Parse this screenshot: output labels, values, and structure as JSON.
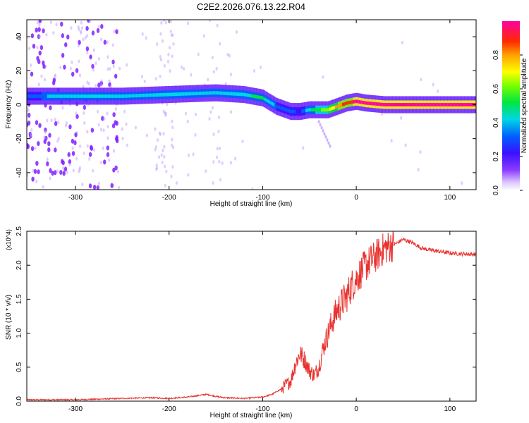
{
  "figure_title": "C2E2.2026.076.13.22.R04",
  "chart_data": [
    {
      "type": "heatmap",
      "title": "C2E2.2026.076.13.22.R04",
      "xlabel": "Height of straight line (km)",
      "ylabel": "Frequency (Hz)",
      "xlim": [
        -352,
        128
      ],
      "ylim": [
        -50,
        50
      ],
      "xticks": [
        -300,
        -200,
        -100,
        0,
        100
      ],
      "yticks": [
        -40,
        -20,
        0,
        20,
        40
      ],
      "colorbar": {
        "label": "Normalized spectral amplitude",
        "range": [
          0.0,
          1.0
        ],
        "ticks": [
          0.0,
          0.2,
          0.4,
          0.6,
          0.8
        ],
        "tick_labels": [
          "0.0",
          "0.2",
          "0.4",
          "0.6",
          "0.8"
        ],
        "colormap": "rainbow (white to purple to blue to cyan to green to yellow to orange to red to magenta)"
      },
      "ridge": {
        "description": "Main spectral ridge (frequency vs height)",
        "x": [
          -350,
          -300,
          -250,
          -200,
          -150,
          -120,
          -100,
          -85,
          -70,
          -60,
          -50,
          -40,
          -30,
          -20,
          -10,
          0,
          10,
          30,
          60,
          100,
          128
        ],
        "y": [
          5,
          5,
          5,
          6,
          7,
          6,
          4,
          -1,
          -4,
          -4,
          -3,
          -3,
          -3,
          -1,
          1,
          2,
          1,
          0,
          0,
          0,
          0
        ],
        "amplitude": [
          0.3,
          0.35,
          0.4,
          0.42,
          0.42,
          0.4,
          0.45,
          0.3,
          0.25,
          0.2,
          0.4,
          0.5,
          0.6,
          0.75,
          0.85,
          0.9,
          0.95,
          0.98,
          0.98,
          0.95,
          0.9
        ]
      }
    },
    {
      "type": "line",
      "xlabel": "Height of straight line (km)",
      "ylabel": "SNR (10 * v/v)",
      "y_multiplier": "(x10^4)",
      "xlim": [
        -352,
        128
      ],
      "ylim": [
        0.0,
        2.5
      ],
      "xticks": [
        -300,
        -200,
        -100,
        0,
        100
      ],
      "yticks": [
        0.0,
        0.5,
        1.0,
        1.5,
        2.0,
        2.5
      ],
      "ytick_labels": [
        "0.0",
        "0.5",
        "1.0",
        "1.5",
        "2.0",
        "2.5"
      ],
      "color": "#e8322f",
      "series": [
        {
          "name": "SNR",
          "x": [
            -352,
            -300,
            -250,
            -220,
            -200,
            -180,
            -160,
            -150,
            -140,
            -120,
            -100,
            -90,
            -80,
            -70,
            -65,
            -60,
            -55,
            -50,
            -45,
            -40,
            -35,
            -30,
            -25,
            -20,
            -15,
            -10,
            -5,
            0,
            10,
            20,
            30,
            40,
            50,
            60,
            70,
            80,
            90,
            100,
            110,
            128
          ],
          "values": [
            0.02,
            0.02,
            0.04,
            0.05,
            0.04,
            0.06,
            0.1,
            0.07,
            0.05,
            0.04,
            0.06,
            0.1,
            0.18,
            0.3,
            0.55,
            0.7,
            0.6,
            0.45,
            0.38,
            0.5,
            0.8,
            1.0,
            1.2,
            1.35,
            1.45,
            1.55,
            1.7,
            1.8,
            2.0,
            2.12,
            2.25,
            2.3,
            2.38,
            2.33,
            2.25,
            2.22,
            2.2,
            2.18,
            2.17,
            2.16
          ]
        }
      ]
    }
  ],
  "colors": {
    "line": "#e8322f",
    "background": "#ffffff",
    "axis": "#000000"
  }
}
